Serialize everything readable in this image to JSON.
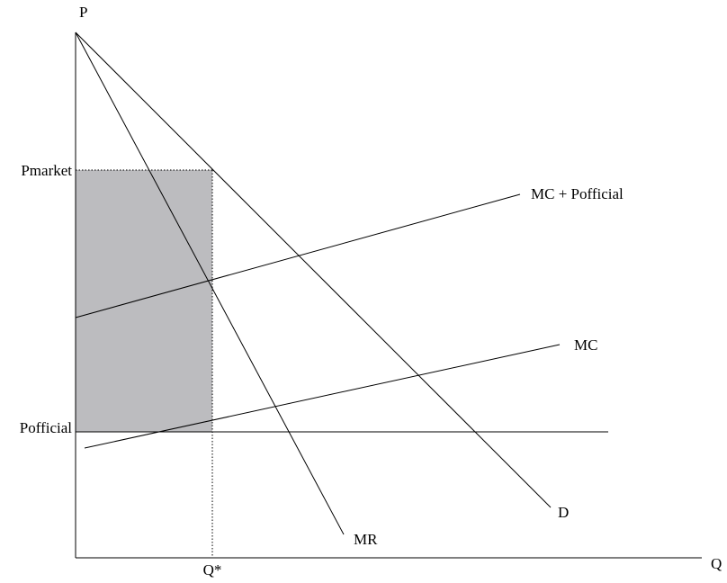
{
  "diagram": {
    "axis_labels": {
      "y": "P",
      "x": "Q"
    },
    "price_labels": {
      "market": "Pmarket",
      "official": "Pofficial"
    },
    "quantity_labels": {
      "q_star": "Q*"
    },
    "curve_labels": {
      "mc_plus_official": "MC + Pofficial",
      "mc": "MC",
      "demand": "D",
      "marginal_revenue": "MR"
    },
    "colors": {
      "lines": "#000000",
      "shaded_region": "#bcbcbf",
      "background": "#ffffff"
    }
  }
}
